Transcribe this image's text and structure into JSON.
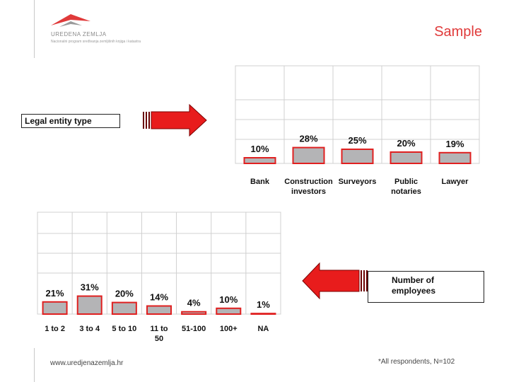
{
  "header": {
    "logo_brand": "UREDENA ZEMLJA",
    "logo_tagline": "Nacionalni program sređivanja zemljišnih knjiga i katastra",
    "sample_label": "Sample"
  },
  "labels": {
    "legal_entity_box": "Legal entity type",
    "employees_box_line1": "Number of",
    "employees_box_line2": "employees"
  },
  "footer": {
    "url": "www.uredjenazemlja.hr",
    "note": "*All respondents, N=102"
  },
  "colors": {
    "accent_red": "#e03a3a",
    "bar_fill": "#b4b4b6",
    "bar_border": "#e02020",
    "grid": "#d0d0d0"
  },
  "chart_data": [
    {
      "type": "bar",
      "title": "",
      "categories": [
        "Bank",
        "Construction investors",
        "Surveyors",
        "Public notaries",
        "Lawyer"
      ],
      "category_lines": [
        [
          "Bank"
        ],
        [
          "Construction",
          "investors"
        ],
        [
          "Surveyors"
        ],
        [
          "Public",
          "notaries"
        ],
        [
          "Lawyer"
        ]
      ],
      "values": [
        10,
        28,
        25,
        20,
        19
      ],
      "value_labels": [
        "10%",
        "28%",
        "25%",
        "20%",
        "19%"
      ],
      "ylim": [
        0,
        100
      ],
      "grid": true
    },
    {
      "type": "bar",
      "title": "",
      "categories": [
        "1 to 2",
        "3 to 4",
        "5 to 10",
        "11 to 50",
        "51-100",
        "100+",
        "NA"
      ],
      "category_lines": [
        [
          "1  to 2"
        ],
        [
          "3 to 4"
        ],
        [
          "5 to 10"
        ],
        [
          "11 to",
          "50"
        ],
        [
          "51-100"
        ],
        [
          "100+"
        ],
        [
          "NA"
        ]
      ],
      "values": [
        21,
        31,
        20,
        14,
        4,
        10,
        1
      ],
      "value_labels": [
        "21%",
        "31%",
        "20%",
        "14%",
        "4%",
        "10%",
        "1%"
      ],
      "ylim": [
        0,
        100
      ],
      "grid": true
    }
  ]
}
